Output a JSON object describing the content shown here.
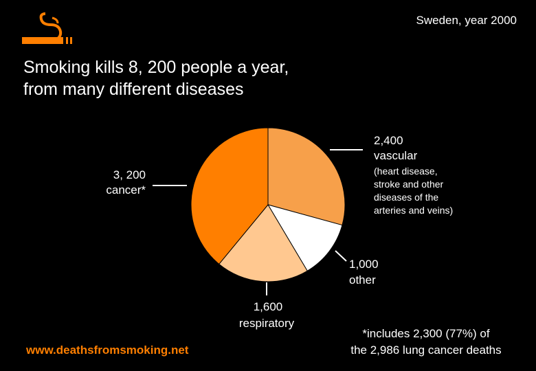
{
  "header": {
    "region_year": "Sweden, year 2000",
    "title_lines": [
      "Smoking kills 8, 200 people a year,",
      "from many different diseases"
    ]
  },
  "colors": {
    "background": "#000000",
    "accent": "#ff7f00",
    "vascular": "#f7a04a",
    "other": "#ffffff",
    "respiratory": "#ffc890",
    "cancer": "#ff7f00"
  },
  "logo": {
    "icon": "cigarette-smoke-icon"
  },
  "chart_data": {
    "type": "pie",
    "title": "Smoking kills 8, 200 people a year, from many different diseases",
    "total": 8200,
    "slices": [
      {
        "name": "vascular",
        "value": 2400,
        "color": "#f7a04a"
      },
      {
        "name": "other",
        "value": 1000,
        "color": "#ffffff"
      },
      {
        "name": "respiratory",
        "value": 1600,
        "color": "#ffc890"
      },
      {
        "name": "cancer*",
        "value": 3200,
        "color": "#ff7f00"
      }
    ],
    "labels": {
      "vascular": {
        "value": "2,400",
        "name": "vascular",
        "detail": [
          "(heart disease,",
          "stroke and other",
          "diseases of the",
          "arteries and veins)"
        ]
      },
      "other": {
        "value": "1,000",
        "name": "other"
      },
      "respiratory": {
        "value": "1,600",
        "name": "respiratory"
      },
      "cancer": {
        "value": "3, 200",
        "name": "cancer*"
      }
    }
  },
  "footer": {
    "website": "www.deathsfromsmoking.net",
    "footnote_lines": [
      "*includes 2,300 (77%) of",
      "the 2,986 lung cancer deaths"
    ]
  }
}
